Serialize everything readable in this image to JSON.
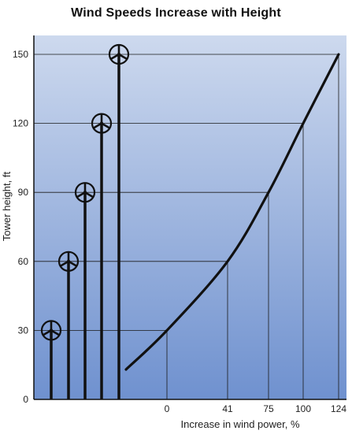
{
  "chart_data": {
    "type": "line",
    "title": "Wind Speeds Increase with Height",
    "xlabel": "Increase in wind power, %",
    "ylabel": "Tower height, ft",
    "ylim": [
      0,
      150
    ],
    "y_ticks": [
      0,
      30,
      60,
      90,
      120,
      150
    ],
    "x_ticks": [
      0,
      41,
      75,
      100,
      124
    ],
    "grid": true,
    "colors": {
      "background_top": "#cdd9ee",
      "background_bottom": "#6f91cf",
      "line": "#111111",
      "tower": "#111111"
    },
    "series": [
      {
        "points": [
          {
            "x": -35,
            "y": 13
          },
          {
            "x": 0,
            "y": 30
          },
          {
            "x": 41,
            "y": 60
          },
          {
            "x": 75,
            "y": 90
          },
          {
            "x": 100,
            "y": 120
          },
          {
            "x": 124,
            "y": 150
          }
        ]
      }
    ],
    "turbines": [
      {
        "height": 30
      },
      {
        "height": 60
      },
      {
        "height": 90
      },
      {
        "height": 120
      },
      {
        "height": 150
      }
    ]
  }
}
